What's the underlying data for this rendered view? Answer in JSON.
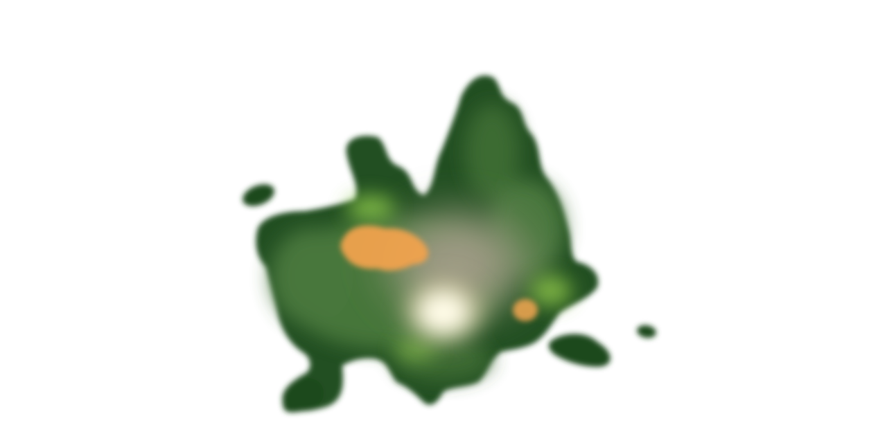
{
  "map": {
    "background_color": "#ffffff",
    "palette": {
      "edge_dark_green": "#1f4a1c",
      "mid_green": "#3c6b32",
      "moss_green": "#5c8a4a",
      "lime_highlight": "#8bc34a",
      "gray_beige": "#9c9484",
      "orange_patch": "#f2a24f",
      "hot_core": "#fff4d2"
    }
  }
}
